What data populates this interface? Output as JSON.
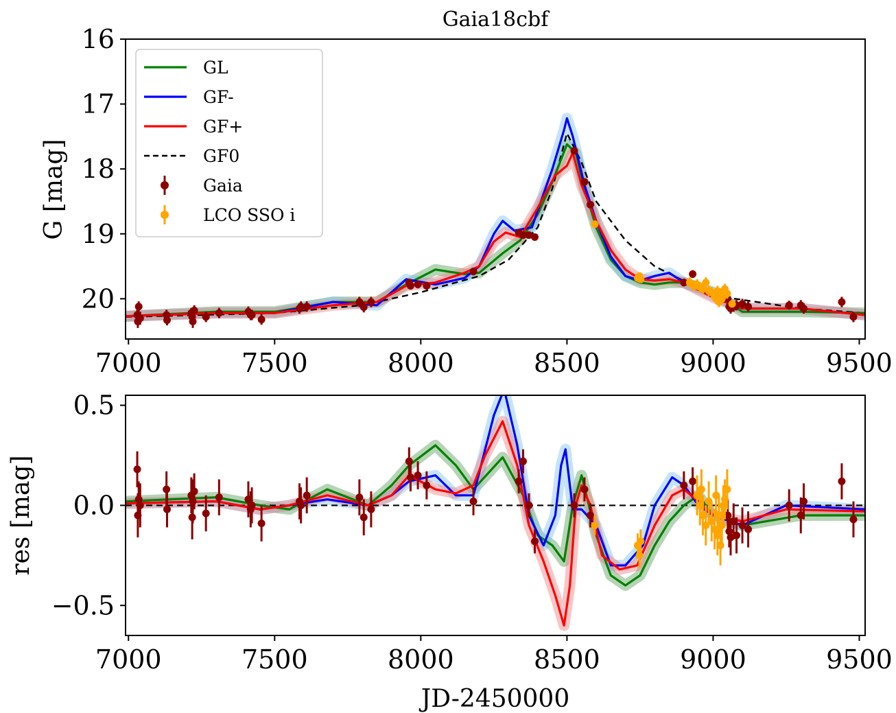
{
  "chart_data": [
    {
      "type": "line",
      "title": "Gaia18cbf",
      "xlabel": "",
      "ylabel": "G [mag]",
      "xlim": [
        6990,
        9520
      ],
      "ylim": [
        20.62,
        16.0
      ],
      "y_inverted": true,
      "xticks": [
        "7000",
        "7500",
        "8000",
        "8500",
        "9000",
        "9500"
      ],
      "yticks": [
        "16",
        "17",
        "18",
        "19",
        "20"
      ],
      "legend": {
        "position": "top-left",
        "entries": [
          {
            "label": "GL",
            "color": "#008000",
            "style": "solid"
          },
          {
            "label": "GF-",
            "color": "#0000ff",
            "style": "solid"
          },
          {
            "label": "GF+",
            "color": "#ff0000",
            "style": "solid"
          },
          {
            "label": "GF0",
            "color": "#000000",
            "style": "dashed"
          },
          {
            "label": "Gaia",
            "color": "#8b0000",
            "style": "errorbar"
          },
          {
            "label": "LCO SSO i",
            "color": "#ffa500",
            "style": "errorbar"
          }
        ]
      },
      "series": [
        {
          "name": "GF0",
          "color": "#000000",
          "dash": true,
          "x": [
            6990,
            7500,
            7800,
            8000,
            8200,
            8300,
            8400,
            8450,
            8500,
            8550,
            8600,
            8700,
            8800,
            9000,
            9300,
            9520
          ],
          "y": [
            20.28,
            20.22,
            20.1,
            19.9,
            19.65,
            19.4,
            18.9,
            18.3,
            17.45,
            17.9,
            18.5,
            19.1,
            19.5,
            19.95,
            20.15,
            20.22
          ]
        },
        {
          "name": "GL",
          "color": "#008000",
          "x": [
            6990,
            7300,
            7500,
            7700,
            7850,
            7950,
            8050,
            8150,
            8200,
            8280,
            8340,
            8400,
            8450,
            8500,
            8530,
            8560,
            8600,
            8650,
            8700,
            8750,
            8800,
            8850,
            8900,
            9000,
            9100,
            9300,
            9520
          ],
          "y": [
            20.27,
            20.2,
            20.2,
            20.05,
            20.05,
            19.78,
            19.55,
            19.62,
            19.6,
            19.3,
            19.1,
            18.7,
            18.2,
            17.62,
            17.75,
            18.3,
            18.9,
            19.4,
            19.65,
            19.75,
            19.78,
            19.75,
            19.75,
            19.9,
            20.2,
            20.2,
            20.22
          ]
        },
        {
          "name": "GF-",
          "color": "#0000ff",
          "x": [
            6990,
            7300,
            7500,
            7700,
            7850,
            7950,
            8050,
            8150,
            8200,
            8250,
            8280,
            8320,
            8380,
            8450,
            8490,
            8500,
            8520,
            8560,
            8600,
            8650,
            8700,
            8750,
            8800,
            8850,
            8900,
            9000,
            9100,
            9300,
            9520
          ],
          "y": [
            20.27,
            20.22,
            20.22,
            20.05,
            20.1,
            19.7,
            19.78,
            19.68,
            19.5,
            19.0,
            18.8,
            18.95,
            18.9,
            18.0,
            17.4,
            17.22,
            17.5,
            18.25,
            18.8,
            19.35,
            19.65,
            19.72,
            19.65,
            19.6,
            19.75,
            19.95,
            20.15,
            20.15,
            20.25
          ]
        },
        {
          "name": "GF+",
          "color": "#ff0000",
          "x": [
            6990,
            7300,
            7500,
            7700,
            7850,
            7950,
            8050,
            8150,
            8200,
            8250,
            8290,
            8340,
            8400,
            8460,
            8500,
            8520,
            8550,
            8600,
            8650,
            8700,
            8750,
            8800,
            8850,
            8900,
            9000,
            9100,
            9300,
            9520
          ],
          "y": [
            20.27,
            20.22,
            20.22,
            20.1,
            20.05,
            19.8,
            19.75,
            19.6,
            19.5,
            19.12,
            18.98,
            19.05,
            18.6,
            18.1,
            17.95,
            17.75,
            18.25,
            18.8,
            19.25,
            19.55,
            19.7,
            19.72,
            19.7,
            19.75,
            19.98,
            20.15,
            20.15,
            20.25
          ]
        }
      ],
      "points": [
        {
          "name": "Gaia",
          "color": "#8b0000",
          "x": [
            7030,
            7032,
            7035,
            7040,
            7130,
            7132,
            7215,
            7218,
            7220,
            7225,
            7265,
            7310,
            7410,
            7418,
            7422,
            7455,
            7585,
            7590,
            7610,
            7790,
            7805,
            7830,
            7960,
            7965,
            7990,
            8020,
            8180,
            8335,
            8350,
            8370,
            8390,
            8525,
            8560,
            8580,
            8900,
            8930,
            9050,
            9055,
            9060,
            9070,
            9080,
            9100,
            9120,
            9260,
            9300,
            9310,
            9440,
            9480
          ],
          "y": [
            20.25,
            20.35,
            20.12,
            20.3,
            20.25,
            20.33,
            20.22,
            20.28,
            20.35,
            20.18,
            20.28,
            20.22,
            20.2,
            20.25,
            20.25,
            20.32,
            20.15,
            20.12,
            20.12,
            20.05,
            20.13,
            20.05,
            19.75,
            19.8,
            19.78,
            19.8,
            19.58,
            18.98,
            19.02,
            19.02,
            19.05,
            17.72,
            18.2,
            18.55,
            19.75,
            19.62,
            20.0,
            20.12,
            20.15,
            20.12,
            20.1,
            20.08,
            20.12,
            20.1,
            20.1,
            20.15,
            20.05,
            20.28
          ],
          "err": [
            0.08,
            0.1,
            0.08,
            0.1,
            0.08,
            0.08,
            0.08,
            0.1,
            0.1,
            0.08,
            0.08,
            0.08,
            0.08,
            0.08,
            0.08,
            0.08,
            0.08,
            0.08,
            0.08,
            0.08,
            0.08,
            0.08,
            0.06,
            0.06,
            0.06,
            0.06,
            0.06,
            0.05,
            0.05,
            0.05,
            0.05,
            0.05,
            0.05,
            0.05,
            0.06,
            0.06,
            0.07,
            0.07,
            0.08,
            0.08,
            0.08,
            0.08,
            0.08,
            0.07,
            0.08,
            0.08,
            0.08,
            0.08
          ]
        },
        {
          "name": "LCO SSO i",
          "color": "#ffa500",
          "x": [
            8595,
            8742,
            8748,
            8752,
            8920,
            8935,
            8945,
            8955,
            8965,
            8975,
            8985,
            8995,
            9005,
            9010,
            9015,
            9020,
            9025,
            9030,
            9035,
            9040,
            9048,
            9065
          ],
          "y": [
            18.85,
            19.68,
            19.65,
            19.7,
            19.75,
            19.8,
            19.78,
            19.82,
            19.85,
            19.75,
            19.88,
            19.9,
            19.95,
            20.0,
            19.88,
            20.05,
            19.92,
            20.0,
            19.95,
            19.85,
            19.92,
            20.08
          ],
          "err": [
            0.04,
            0.05,
            0.05,
            0.05,
            0.08,
            0.08,
            0.08,
            0.08,
            0.08,
            0.08,
            0.08,
            0.08,
            0.08,
            0.08,
            0.08,
            0.08,
            0.08,
            0.08,
            0.08,
            0.08,
            0.08,
            0.05
          ]
        }
      ]
    },
    {
      "type": "line",
      "title": "",
      "xlabel": "JD-2450000",
      "ylabel": "res [mag]",
      "xlim": [
        6990,
        9520
      ],
      "ylim": [
        -0.65,
        0.55
      ],
      "xticks": [
        "7000",
        "7500",
        "8000",
        "8500",
        "9000",
        "9500"
      ],
      "yticks": [
        "0.5",
        "0.0",
        "−0.5"
      ],
      "zero_line": true,
      "series": [
        {
          "name": "GL",
          "color": "#008000",
          "x": [
            6990,
            7300,
            7450,
            7550,
            7680,
            7820,
            7900,
            7960,
            8050,
            8120,
            8180,
            8280,
            8350,
            8400,
            8450,
            8490,
            8520,
            8550,
            8600,
            8650,
            8700,
            8750,
            8800,
            8850,
            8900,
            8950,
            9000,
            9100,
            9300,
            9520
          ],
          "y": [
            0.02,
            0.04,
            0.0,
            -0.02,
            0.08,
            0.0,
            0.1,
            0.2,
            0.3,
            0.2,
            0.08,
            0.24,
            0.05,
            -0.15,
            -0.2,
            -0.28,
            0.0,
            0.15,
            -0.15,
            -0.35,
            -0.4,
            -0.35,
            -0.2,
            -0.08,
            0.0,
            0.05,
            -0.05,
            -0.1,
            -0.05,
            -0.05
          ]
        },
        {
          "name": "GF-",
          "color": "#0000ff",
          "x": [
            6990,
            7300,
            7450,
            7550,
            7680,
            7820,
            7900,
            7960,
            8050,
            8120,
            8180,
            8250,
            8285,
            8330,
            8370,
            8420,
            8460,
            8480,
            8495,
            8520,
            8550,
            8600,
            8650,
            8700,
            8760,
            8800,
            8860,
            8900,
            8950,
            9000,
            9100,
            9250,
            9520
          ],
          "y": [
            0.01,
            0.02,
            -0.02,
            0.0,
            0.03,
            0.0,
            0.05,
            0.12,
            0.15,
            0.05,
            0.05,
            0.45,
            0.58,
            0.3,
            -0.05,
            -0.2,
            -0.05,
            0.2,
            0.28,
            -0.02,
            -0.02,
            -0.1,
            -0.3,
            -0.3,
            -0.2,
            0.0,
            0.14,
            0.1,
            0.0,
            -0.05,
            -0.1,
            0.0,
            -0.02
          ]
        },
        {
          "name": "GF+",
          "color": "#ff0000",
          "x": [
            6990,
            7300,
            7450,
            7550,
            7680,
            7820,
            7900,
            7960,
            8050,
            8120,
            8180,
            8220,
            8280,
            8330,
            8370,
            8420,
            8460,
            8490,
            8510,
            8530,
            8550,
            8580,
            8620,
            8680,
            8740,
            8800,
            8860,
            8900,
            8950,
            9000,
            9100,
            9250,
            9520
          ],
          "y": [
            0.01,
            0.02,
            -0.02,
            0.0,
            0.05,
            0.0,
            0.05,
            0.15,
            0.08,
            0.06,
            0.1,
            0.25,
            0.42,
            0.2,
            -0.1,
            -0.28,
            -0.45,
            -0.6,
            -0.4,
            0.0,
            0.1,
            0.0,
            -0.25,
            -0.32,
            -0.3,
            -0.1,
            0.05,
            0.08,
            0.02,
            -0.05,
            -0.08,
            -0.02,
            -0.03
          ]
        }
      ],
      "points": [
        {
          "name": "Gaia",
          "color": "#8b0000",
          "x": [
            7030,
            7032,
            7035,
            7040,
            7130,
            7132,
            7215,
            7218,
            7220,
            7225,
            7265,
            7310,
            7410,
            7418,
            7422,
            7455,
            7585,
            7590,
            7610,
            7790,
            7805,
            7830,
            7960,
            7965,
            7990,
            8020,
            8180,
            8335,
            8350,
            8370,
            8390,
            8525,
            8560,
            8580,
            8900,
            8930,
            9050,
            9055,
            9060,
            9070,
            9080,
            9100,
            9120,
            9260,
            9300,
            9310,
            9440,
            9480
          ],
          "y": [
            0.18,
            -0.05,
            0.03,
            0.0,
            0.08,
            -0.02,
            0.05,
            -0.06,
            0.02,
            0.07,
            -0.04,
            0.04,
            0.03,
            -0.02,
            0.0,
            -0.09,
            0.02,
            0.0,
            0.05,
            0.04,
            -0.06,
            -0.02,
            0.22,
            0.14,
            0.15,
            0.1,
            0.02,
            0.12,
            0.22,
            0.0,
            -0.18,
            0.0,
            0.08,
            -0.05,
            0.1,
            0.12,
            -0.05,
            -0.13,
            -0.16,
            -0.08,
            -0.15,
            -0.1,
            -0.12,
            0.0,
            -0.05,
            0.02,
            0.12,
            -0.07
          ],
          "err": [
            0.09,
            0.11,
            0.09,
            0.11,
            0.09,
            0.09,
            0.09,
            0.11,
            0.11,
            0.09,
            0.09,
            0.09,
            0.09,
            0.09,
            0.09,
            0.09,
            0.09,
            0.09,
            0.09,
            0.09,
            0.09,
            0.09,
            0.07,
            0.07,
            0.07,
            0.07,
            0.07,
            0.06,
            0.06,
            0.06,
            0.06,
            0.06,
            0.06,
            0.06,
            0.07,
            0.07,
            0.08,
            0.08,
            0.09,
            0.09,
            0.09,
            0.09,
            0.09,
            0.08,
            0.09,
            0.09,
            0.09,
            0.09
          ]
        },
        {
          "name": "LCO SSO i",
          "color": "#ffa500",
          "x": [
            8595,
            8742,
            8748,
            8752,
            8945,
            8955,
            8960,
            8965,
            8975,
            8985,
            8995,
            9005,
            9010,
            9015,
            9020,
            9025,
            9030,
            9035,
            9040,
            9048
          ],
          "y": [
            -0.1,
            -0.2,
            -0.25,
            -0.18,
            0.05,
            0.0,
            0.08,
            -0.05,
            -0.1,
            0.02,
            -0.08,
            -0.12,
            0.05,
            -0.15,
            -0.05,
            -0.2,
            -0.1,
            0.0,
            0.03,
            0.08
          ],
          "err": [
            0.05,
            0.06,
            0.06,
            0.06,
            0.1,
            0.1,
            0.1,
            0.1,
            0.1,
            0.1,
            0.1,
            0.1,
            0.1,
            0.1,
            0.1,
            0.1,
            0.1,
            0.1,
            0.1,
            0.1
          ]
        }
      ]
    }
  ]
}
